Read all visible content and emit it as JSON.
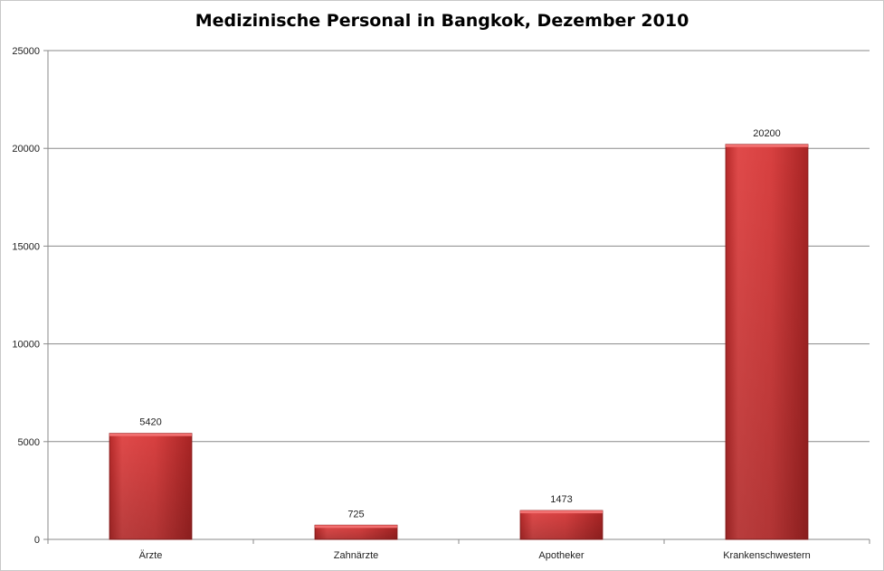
{
  "chart_data": {
    "type": "bar",
    "title": "Medizinische Personal in Bangkok, Dezember 2010",
    "xlabel": "",
    "ylabel": "",
    "categories": [
      "Ärzte",
      "Zahnärzte",
      "Apotheker",
      "Krankenschwestern"
    ],
    "series": [
      {
        "values": [
          5420,
          725,
          1473,
          20200
        ]
      }
    ],
    "ylim": [
      0,
      25000
    ],
    "yticks": [
      0,
      5000,
      10000,
      15000,
      20000,
      25000
    ],
    "grid": true,
    "legend": "none",
    "data_labels": true,
    "bar_color": "#d63b3b"
  }
}
